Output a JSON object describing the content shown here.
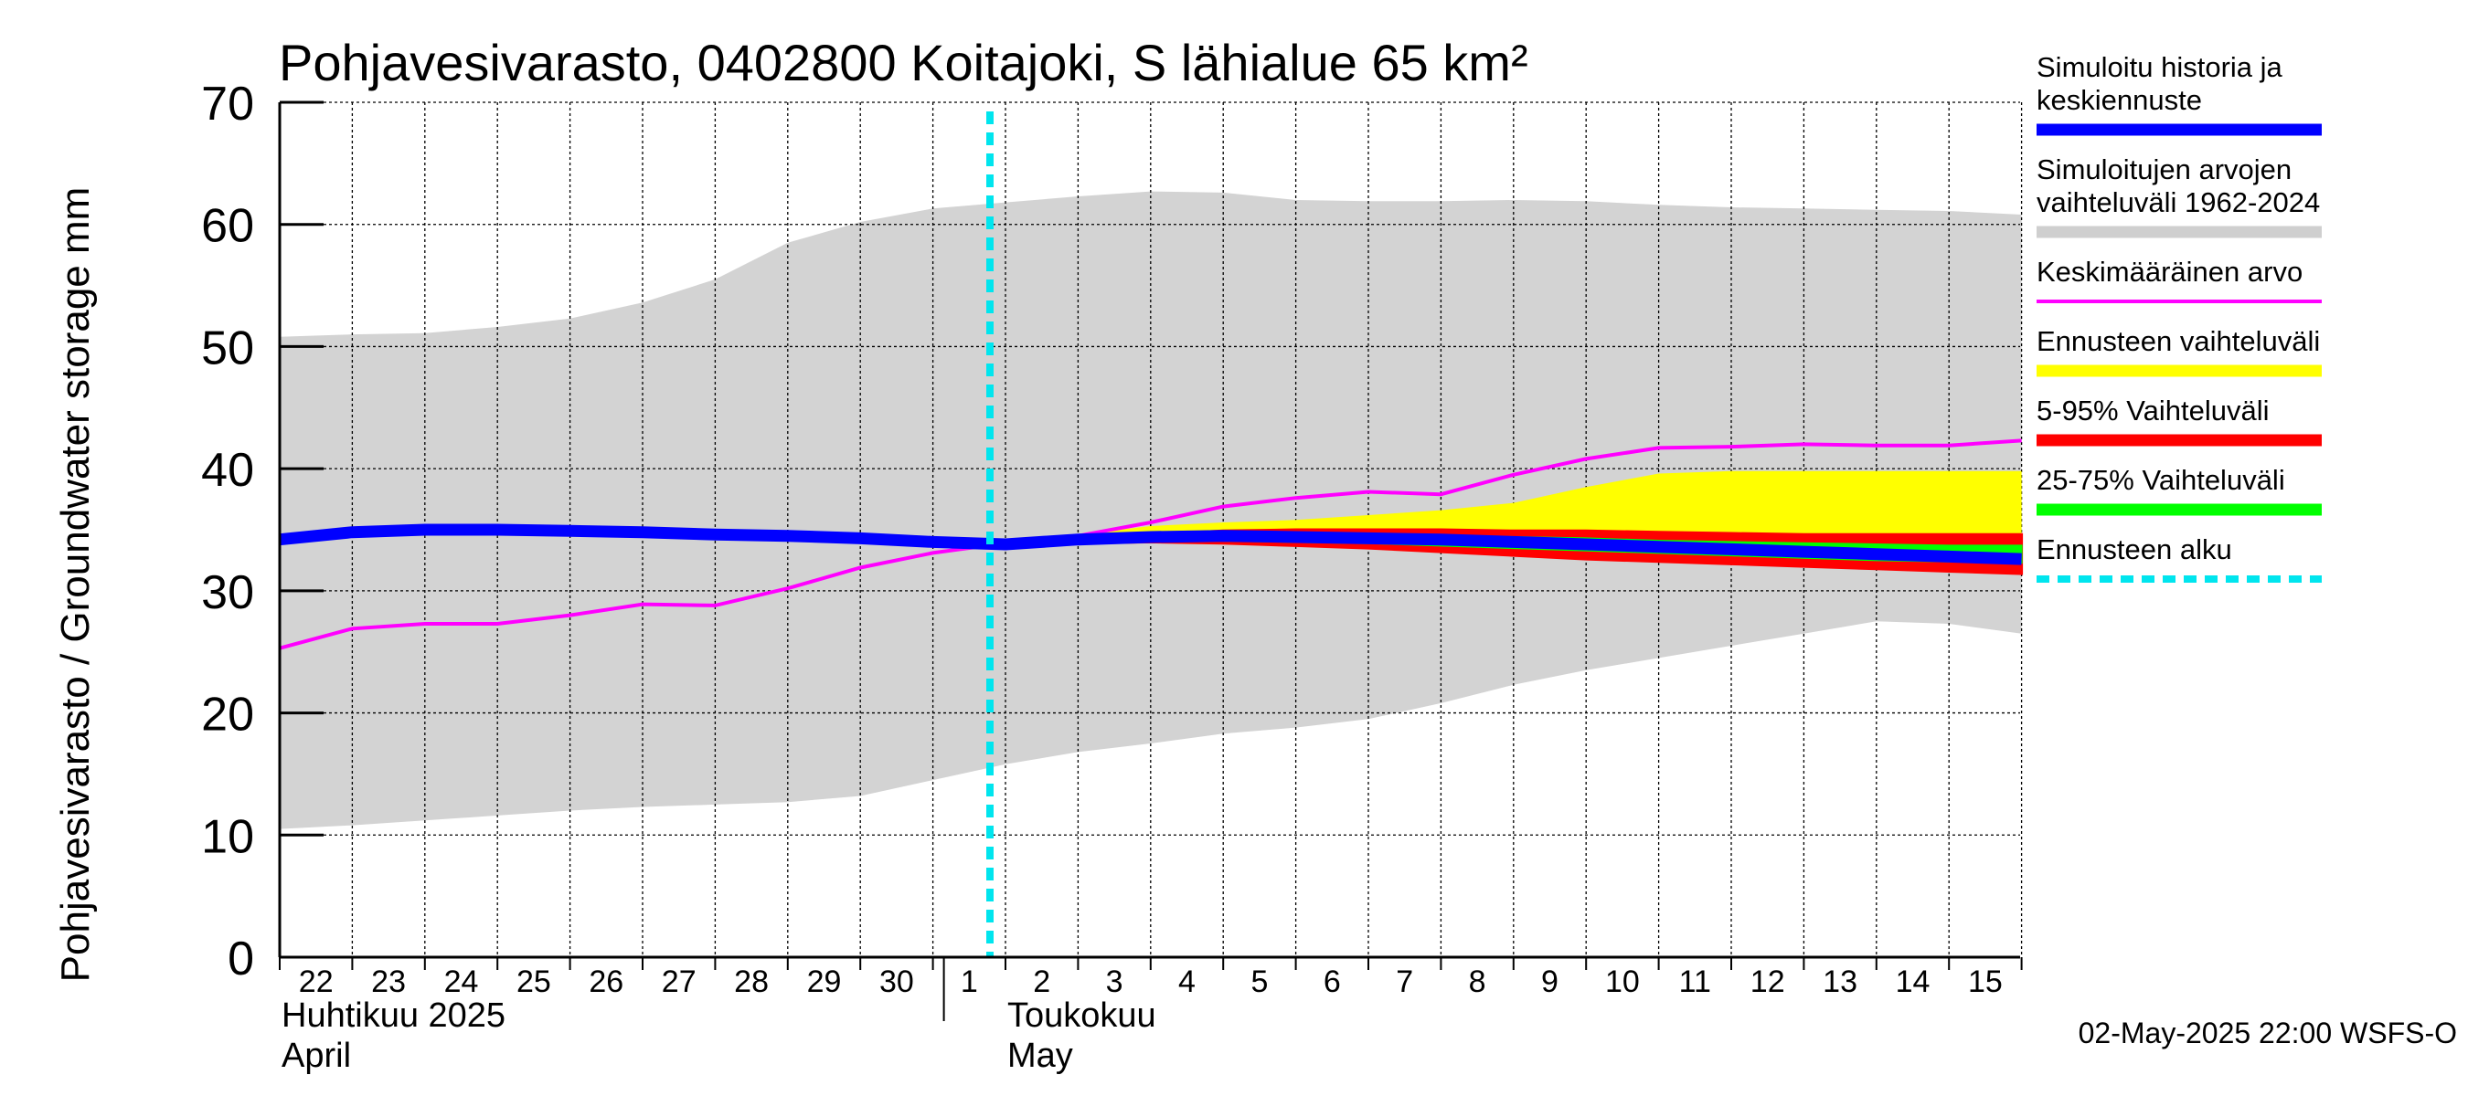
{
  "chart_data": {
    "type": "area",
    "title": "Pohjavesivarasto, 0402800 Koitajoki, S lähialue 65 km²",
    "ylabel": "Pohjavesivarasto / Groundwater storage   mm",
    "ylim": [
      0,
      70
    ],
    "yticks": [
      0,
      10,
      20,
      30,
      40,
      50,
      60,
      70
    ],
    "x_day_labels": [
      "22",
      "23",
      "24",
      "25",
      "26",
      "27",
      "28",
      "29",
      "30",
      "1",
      "2",
      "3",
      "4",
      "5",
      "6",
      "7",
      "8",
      "9",
      "10",
      "11",
      "12",
      "13",
      "14",
      "15"
    ],
    "x_month_labels": [
      {
        "fi": "Huhtikuu  2025",
        "en": "April",
        "day_index": 0
      },
      {
        "fi": "Toukokuu",
        "en": "May",
        "day_index": 10
      }
    ],
    "month_divider_day_index": 9,
    "forecast_start_day_index": 10,
    "day_positions": [
      0,
      1,
      2,
      3,
      4,
      5,
      6,
      7,
      8,
      9,
      10,
      11,
      12,
      13,
      14,
      15,
      16,
      17,
      18,
      19,
      20,
      21,
      22,
      23,
      24
    ],
    "range_low": [
      10.5,
      10.8,
      11.2,
      11.6,
      12.0,
      12.3,
      12.5,
      12.7,
      13.2,
      14.5,
      15.8,
      16.8,
      17.5,
      18.3,
      18.8,
      19.5,
      20.8,
      22.3,
      23.5,
      24.5,
      25.5,
      26.5,
      27.5,
      27.3,
      26.5
    ],
    "range_high": [
      50.8,
      51.0,
      51.1,
      51.6,
      52.3,
      53.6,
      55.5,
      58.5,
      60.2,
      61.3,
      61.8,
      62.3,
      62.7,
      62.6,
      62.0,
      61.9,
      61.9,
      62.0,
      61.9,
      61.6,
      61.4,
      61.3,
      61.2,
      61.1,
      60.8
    ],
    "mean": [
      25.3,
      26.9,
      27.3,
      27.3,
      28.0,
      28.9,
      28.8,
      30.2,
      31.9,
      33.1,
      33.9,
      34.5,
      35.6,
      36.9,
      37.6,
      38.1,
      37.9,
      39.5,
      40.8,
      41.7,
      41.8,
      42.0,
      41.9,
      41.9,
      42.3
    ],
    "history": [
      34.2,
      34.8,
      35.0,
      35.0,
      34.9,
      34.8,
      34.6,
      34.5,
      34.3,
      34.0,
      33.8,
      34.2,
      34.4,
      34.5,
      34.4,
      34.3,
      34.2,
      34.0,
      33.8,
      33.6,
      33.4,
      33.2,
      33.0,
      32.8,
      32.6
    ],
    "forecast_day_positions": [
      10,
      11,
      12,
      13,
      14,
      15,
      16,
      17,
      18,
      19,
      20,
      21,
      22,
      23,
      24
    ],
    "yellow_high": [
      33.8,
      34.6,
      35.3,
      35.6,
      35.8,
      36.2,
      36.6,
      37.2,
      38.5,
      39.6,
      39.8,
      39.8,
      39.8,
      39.8,
      39.8
    ],
    "yellow_low": [
      33.8,
      33.9,
      34.0,
      33.9,
      33.7,
      33.5,
      33.2,
      32.9,
      32.6,
      32.4,
      32.2,
      32.0,
      31.8,
      31.6,
      31.4
    ],
    "red_high": [
      33.8,
      34.3,
      34.6,
      34.9,
      35.0,
      35.0,
      35.0,
      34.9,
      34.9,
      34.8,
      34.7,
      34.6,
      34.6,
      34.6,
      34.6
    ],
    "red_low": [
      33.8,
      33.9,
      34.0,
      33.9,
      33.7,
      33.5,
      33.2,
      32.9,
      32.6,
      32.4,
      32.2,
      32.0,
      31.8,
      31.6,
      31.4
    ],
    "green_high": [
      33.8,
      34.2,
      34.4,
      34.6,
      34.6,
      34.6,
      34.5,
      34.4,
      34.3,
      34.1,
      34.0,
      33.9,
      33.8,
      33.7,
      33.7
    ],
    "green_low": [
      33.8,
      34.0,
      34.1,
      34.1,
      34.0,
      33.9,
      33.7,
      33.5,
      33.3,
      33.1,
      32.9,
      32.7,
      32.5,
      32.4,
      32.3
    ],
    "legend": [
      {
        "label": "Simuloitu historia ja keskiennuste",
        "lines": [
          "Simuloitu historia ja",
          "keskiennuste"
        ],
        "color": "#0000ff",
        "style": "thick"
      },
      {
        "label": "Simuloitujen arvojen vaihteluväli 1962-2024",
        "lines": [
          "Simuloitujen arvojen",
          "vaihteluväli 1962-2024"
        ],
        "color": "#cfcfcf",
        "style": "thick"
      },
      {
        "label": "Keskimääräinen arvo",
        "lines": [
          "Keskimääräinen arvo"
        ],
        "color": "#ff00ff",
        "style": "thin"
      },
      {
        "label": "Ennusteen vaihteluväli",
        "lines": [
          "Ennusteen vaihteluväli"
        ],
        "color": "#ffff00",
        "style": "thick"
      },
      {
        "label": "5-95% Vaihteluväli",
        "lines": [
          "5-95% Vaihteluväli"
        ],
        "color": "#ff0000",
        "style": "thick"
      },
      {
        "label": "25-75% Vaihteluväli",
        "lines": [
          "25-75% Vaihteluväli"
        ],
        "color": "#00ff00",
        "style": "thick"
      },
      {
        "label": "Ennusteen alku",
        "lines": [
          "Ennusteen alku"
        ],
        "color": "#00e5ee",
        "style": "dashed"
      }
    ],
    "grid": true
  },
  "timestamp": "02-May-2025 22:00 WSFS-O",
  "colors": {
    "range_fill": "#d3d3d3",
    "history": "#0000ff",
    "mean": "#ff00ff",
    "yellow": "#ffff00",
    "red": "#ff0000",
    "green": "#00ff00",
    "forecast_start": "#00e5ee",
    "grid": "#000000"
  }
}
